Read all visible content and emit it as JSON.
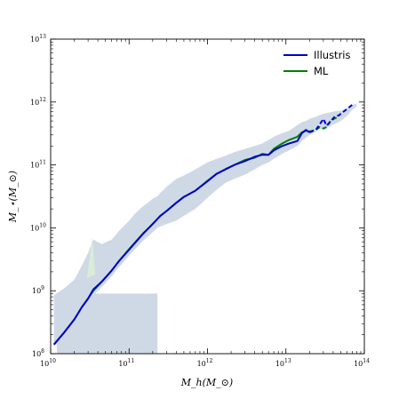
{
  "chart_data": {
    "type": "line",
    "xscale": "log",
    "yscale": "log",
    "xlim": [
      10000000000.0,
      100000000000000.0
    ],
    "ylim": [
      100000000.0,
      10000000000000.0
    ],
    "xlabel": "M_h(M_⊙)",
    "ylabel": "M_⋆(M_⊙)",
    "x_ticks": [
      {
        "value": 10000000000.0,
        "base": "10",
        "exp": "10"
      },
      {
        "value": 100000000000.0,
        "base": "10",
        "exp": "11"
      },
      {
        "value": 1000000000000.0,
        "base": "10",
        "exp": "12"
      },
      {
        "value": 10000000000000.0,
        "base": "10",
        "exp": "13"
      },
      {
        "value": 100000000000000.0,
        "base": "10",
        "exp": "14"
      }
    ],
    "y_ticks": [
      {
        "value": 100000000.0,
        "base": "10",
        "exp": "8"
      },
      {
        "value": 1000000000.0,
        "base": "10",
        "exp": "9"
      },
      {
        "value": 10000000000.0,
        "base": "10",
        "exp": "10"
      },
      {
        "value": 100000000000.0,
        "base": "10",
        "exp": "11"
      },
      {
        "value": 1000000000000.0,
        "base": "10",
        "exp": "12"
      },
      {
        "value": 10000000000000.0,
        "base": "10",
        "exp": "13"
      }
    ],
    "grid": false,
    "legend": {
      "position": "top-right",
      "entries": [
        "Illustris",
        "ML"
      ]
    },
    "colors": {
      "Illustris": "#0000cc",
      "ML": "#008000",
      "band": "#cfd9e6",
      "band_green": "#d8ecd8"
    },
    "series": [
      {
        "name": "Illustris",
        "style": "solid-then-dashed",
        "dashed_from_x": 20000000000000.0,
        "x": [
          11000000000.0,
          15000000000.0,
          20000000000.0,
          25000000000.0,
          30000000000.0,
          35000000000.0,
          45000000000.0,
          60000000000.0,
          75000000000.0,
          100000000000.0,
          120000000000.0,
          150000000000.0,
          200000000000.0,
          250000000000.0,
          300000000000.0,
          400000000000.0,
          500000000000.0,
          700000000000.0,
          1000000000000.0,
          1300000000000.0,
          1700000000000.0,
          2200000000000.0,
          3000000000000.0,
          4000000000000.0,
          5000000000000.0,
          6000000000000.0,
          7000000000000.0,
          9000000000000.0,
          11000000000000.0,
          14000000000000.0,
          16000000000000.0,
          18000000000000.0,
          20000000000000.0,
          24000000000000.0,
          27000000000000.0,
          30000000000000.0,
          33000000000000.0,
          37000000000000.0,
          42000000000000.0,
          47000000000000.0,
          70000000000000.0,
          75000000000000.0
        ],
        "y": [
          140000000.0,
          220000000.0,
          350000000.0,
          550000000.0,
          750000000.0,
          1050000000.0,
          1400000000.0,
          2100000000.0,
          3000000000.0,
          4500000000.0,
          5800000000.0,
          8000000000.0,
          11500000000.0,
          15500000000.0,
          18500000000.0,
          25000000000.0,
          31000000000.0,
          39000000000.0,
          55000000000.0,
          72000000000.0,
          85000000000.0,
          100000000000.0,
          115000000000.0,
          135000000000.0,
          145000000000.0,
          145000000000.0,
          170000000000.0,
          200000000000.0,
          220000000000.0,
          240000000000.0,
          320000000000.0,
          360000000000.0,
          330000000000.0,
          360000000000.0,
          440000000000.0,
          540000000000.0,
          420000000000.0,
          490000000000.0,
          590000000000.0,
          610000000000.0,
          900000000000.0,
          880000000000.0
        ]
      },
      {
        "name": "ML",
        "style": "solid-then-dashed",
        "dashed_from_x": 20000000000000.0,
        "x": [
          11000000000.0,
          15000000000.0,
          20000000000.0,
          25000000000.0,
          30000000000.0,
          35000000000.0,
          45000000000.0,
          60000000000.0,
          75000000000.0,
          100000000000.0,
          120000000000.0,
          150000000000.0,
          200000000000.0,
          250000000000.0,
          300000000000.0,
          400000000000.0,
          500000000000.0,
          700000000000.0,
          1000000000000.0,
          1300000000000.0,
          1700000000000.0,
          2200000000000.0,
          3000000000000.0,
          4000000000000.0,
          5000000000000.0,
          6000000000000.0,
          7000000000000.0,
          9000000000000.0,
          11000000000000.0,
          14000000000000.0,
          16000000000000.0,
          18000000000000.0,
          20000000000000.0,
          24000000000000.0,
          27000000000000.0,
          30000000000000.0,
          33000000000000.0,
          37000000000000.0,
          42000000000000.0,
          47000000000000.0
        ],
        "y": [
          140000000.0,
          220000000.0,
          350000000.0,
          550000000.0,
          750000000.0,
          1000000000.0,
          1400000000.0,
          2100000000.0,
          3000000000.0,
          4600000000.0,
          5900000000.0,
          8100000000.0,
          11500000000.0,
          15500000000.0,
          18500000000.0,
          25000000000.0,
          31000000000.0,
          39000000000.0,
          56000000000.0,
          72000000000.0,
          86000000000.0,
          100000000000.0,
          120000000000.0,
          130000000000.0,
          150000000000.0,
          145000000000.0,
          180000000000.0,
          220000000000.0,
          250000000000.0,
          280000000000.0,
          330000000000.0,
          350000000000.0,
          340000000000.0,
          360000000000.0,
          400000000000.0,
          380000000000.0,
          400000000000.0,
          500000000000.0,
          550000000000.0,
          580000000000.0
        ]
      }
    ],
    "band": {
      "x": [
        11000000000.0,
        15000000000.0,
        20000000000.0,
        25000000000.0,
        30000000000.0,
        35000000000.0,
        45000000000.0,
        60000000000.0,
        75000000000.0,
        100000000000.0,
        120000000000.0,
        150000000000.0,
        200000000000.0,
        230000000000.0,
        250000000000.0,
        300000000000.0,
        400000000000.0,
        500000000000.0,
        700000000000.0,
        1000000000000.0,
        1300000000000.0,
        1700000000000.0,
        2200000000000.0,
        3000000000000.0,
        4000000000000.0,
        5000000000000.0,
        6000000000000.0,
        7000000000000.0,
        9000000000000.0,
        11000000000000.0,
        14000000000000.0,
        16000000000000.0,
        18000000000000.0,
        20000000000000.0,
        24000000000000.0,
        27000000000000.0,
        30000000000000.0,
        35000000000000.0,
        42000000000000.0,
        50000000000000.0,
        60000000000000.0,
        70000000000000.0,
        80000000000000.0
      ],
      "upper": [
        850000000.0,
        1100000000.0,
        1500000000.0,
        2500000000.0,
        4000000000.0,
        6500000000.0,
        5500000000.0,
        6500000000.0,
        9000000000.0,
        13000000000.0,
        17000000000.0,
        22000000000.0,
        29000000000.0,
        32000000000.0,
        36000000000.0,
        45000000000.0,
        60000000000.0,
        68000000000.0,
        85000000000.0,
        110000000000.0,
        125000000000.0,
        140000000000.0,
        160000000000.0,
        180000000000.0,
        200000000000.0,
        220000000000.0,
        250000000000.0,
        280000000000.0,
        320000000000.0,
        350000000000.0,
        430000000000.0,
        480000000000.0,
        500000000000.0,
        540000000000.0,
        580000000000.0,
        620000000000.0,
        650000000000.0,
        680000000000.0,
        710000000000.0,
        730000000000.0,
        800000000000.0,
        900000000000.0,
        950000000000.0
      ],
      "lower": [
        130000000.0,
        190000000.0,
        290000000.0,
        450000000.0,
        650000000.0,
        850000000.0,
        1150000000.0,
        1700000000.0,
        2400000000.0,
        3600000000.0,
        4600000000.0,
        6200000000.0,
        8500000000.0,
        10000000000.0,
        10500000000.0,
        11500000000.0,
        13000000000.0,
        15500000000.0,
        20000000000.0,
        30000000000.0,
        40000000000.0,
        52000000000.0,
        60000000000.0,
        70000000000.0,
        85000000000.0,
        100000000000.0,
        110000000000.0,
        125000000000.0,
        150000000000.0,
        170000000000.0,
        200000000000.0,
        240000000000.0,
        270000000000.0,
        300000000000.0,
        340000000000.0,
        380000000000.0,
        360000000000.0,
        400000000000.0,
        450000000000.0,
        500000000000.0,
        600000000000.0,
        750000000000.0,
        850000000000.0
      ]
    },
    "low_drop": {
      "x": [
        12000000000.0,
        230000000000.0
      ],
      "y_top": 900000000.0,
      "y_bottom": 100000000.0
    }
  }
}
